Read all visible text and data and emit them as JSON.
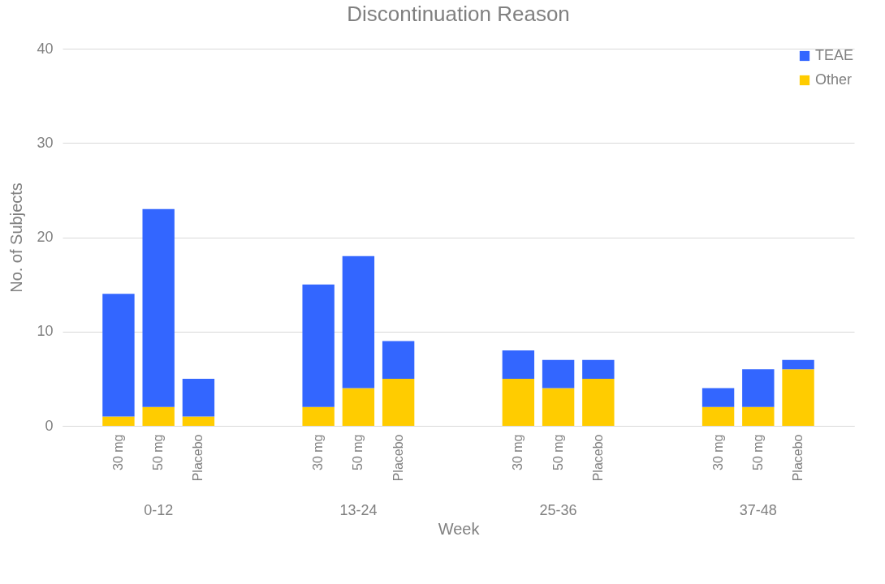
{
  "chart_data": {
    "type": "bar",
    "title": "Discontinuation Reason",
    "xlabel": "Week",
    "ylabel": "No. of Subjects",
    "categories": [
      null,
      "30 mg",
      "50 mg",
      "Placebo",
      null,
      null,
      "30 mg",
      "50 mg",
      "Placebo",
      null,
      null,
      "30 mg",
      "50 mg",
      "Placebo",
      null,
      null,
      "30 mg",
      "50 mg",
      "Placebo",
      null
    ],
    "annotations": [
      "0-12",
      "13-24",
      "25-36",
      "37-48"
    ],
    "stacked": true,
    "series": [
      {
        "name": "Other",
        "color": "#ffcc00",
        "values": [
          null,
          1,
          2,
          1,
          null,
          null,
          2,
          4,
          5,
          null,
          null,
          5,
          4,
          5,
          null,
          null,
          2,
          2,
          6,
          null
        ]
      },
      {
        "name": "TEAE",
        "color": "#3366ff",
        "values": [
          null,
          13,
          21,
          4,
          null,
          null,
          13,
          14,
          4,
          null,
          null,
          3,
          3,
          2,
          null,
          null,
          2,
          4,
          1,
          null
        ]
      }
    ],
    "ylim": [
      0,
      40
    ],
    "yticks": [
      0,
      10,
      20,
      30,
      40
    ],
    "grid": "y",
    "legend": "top right"
  }
}
